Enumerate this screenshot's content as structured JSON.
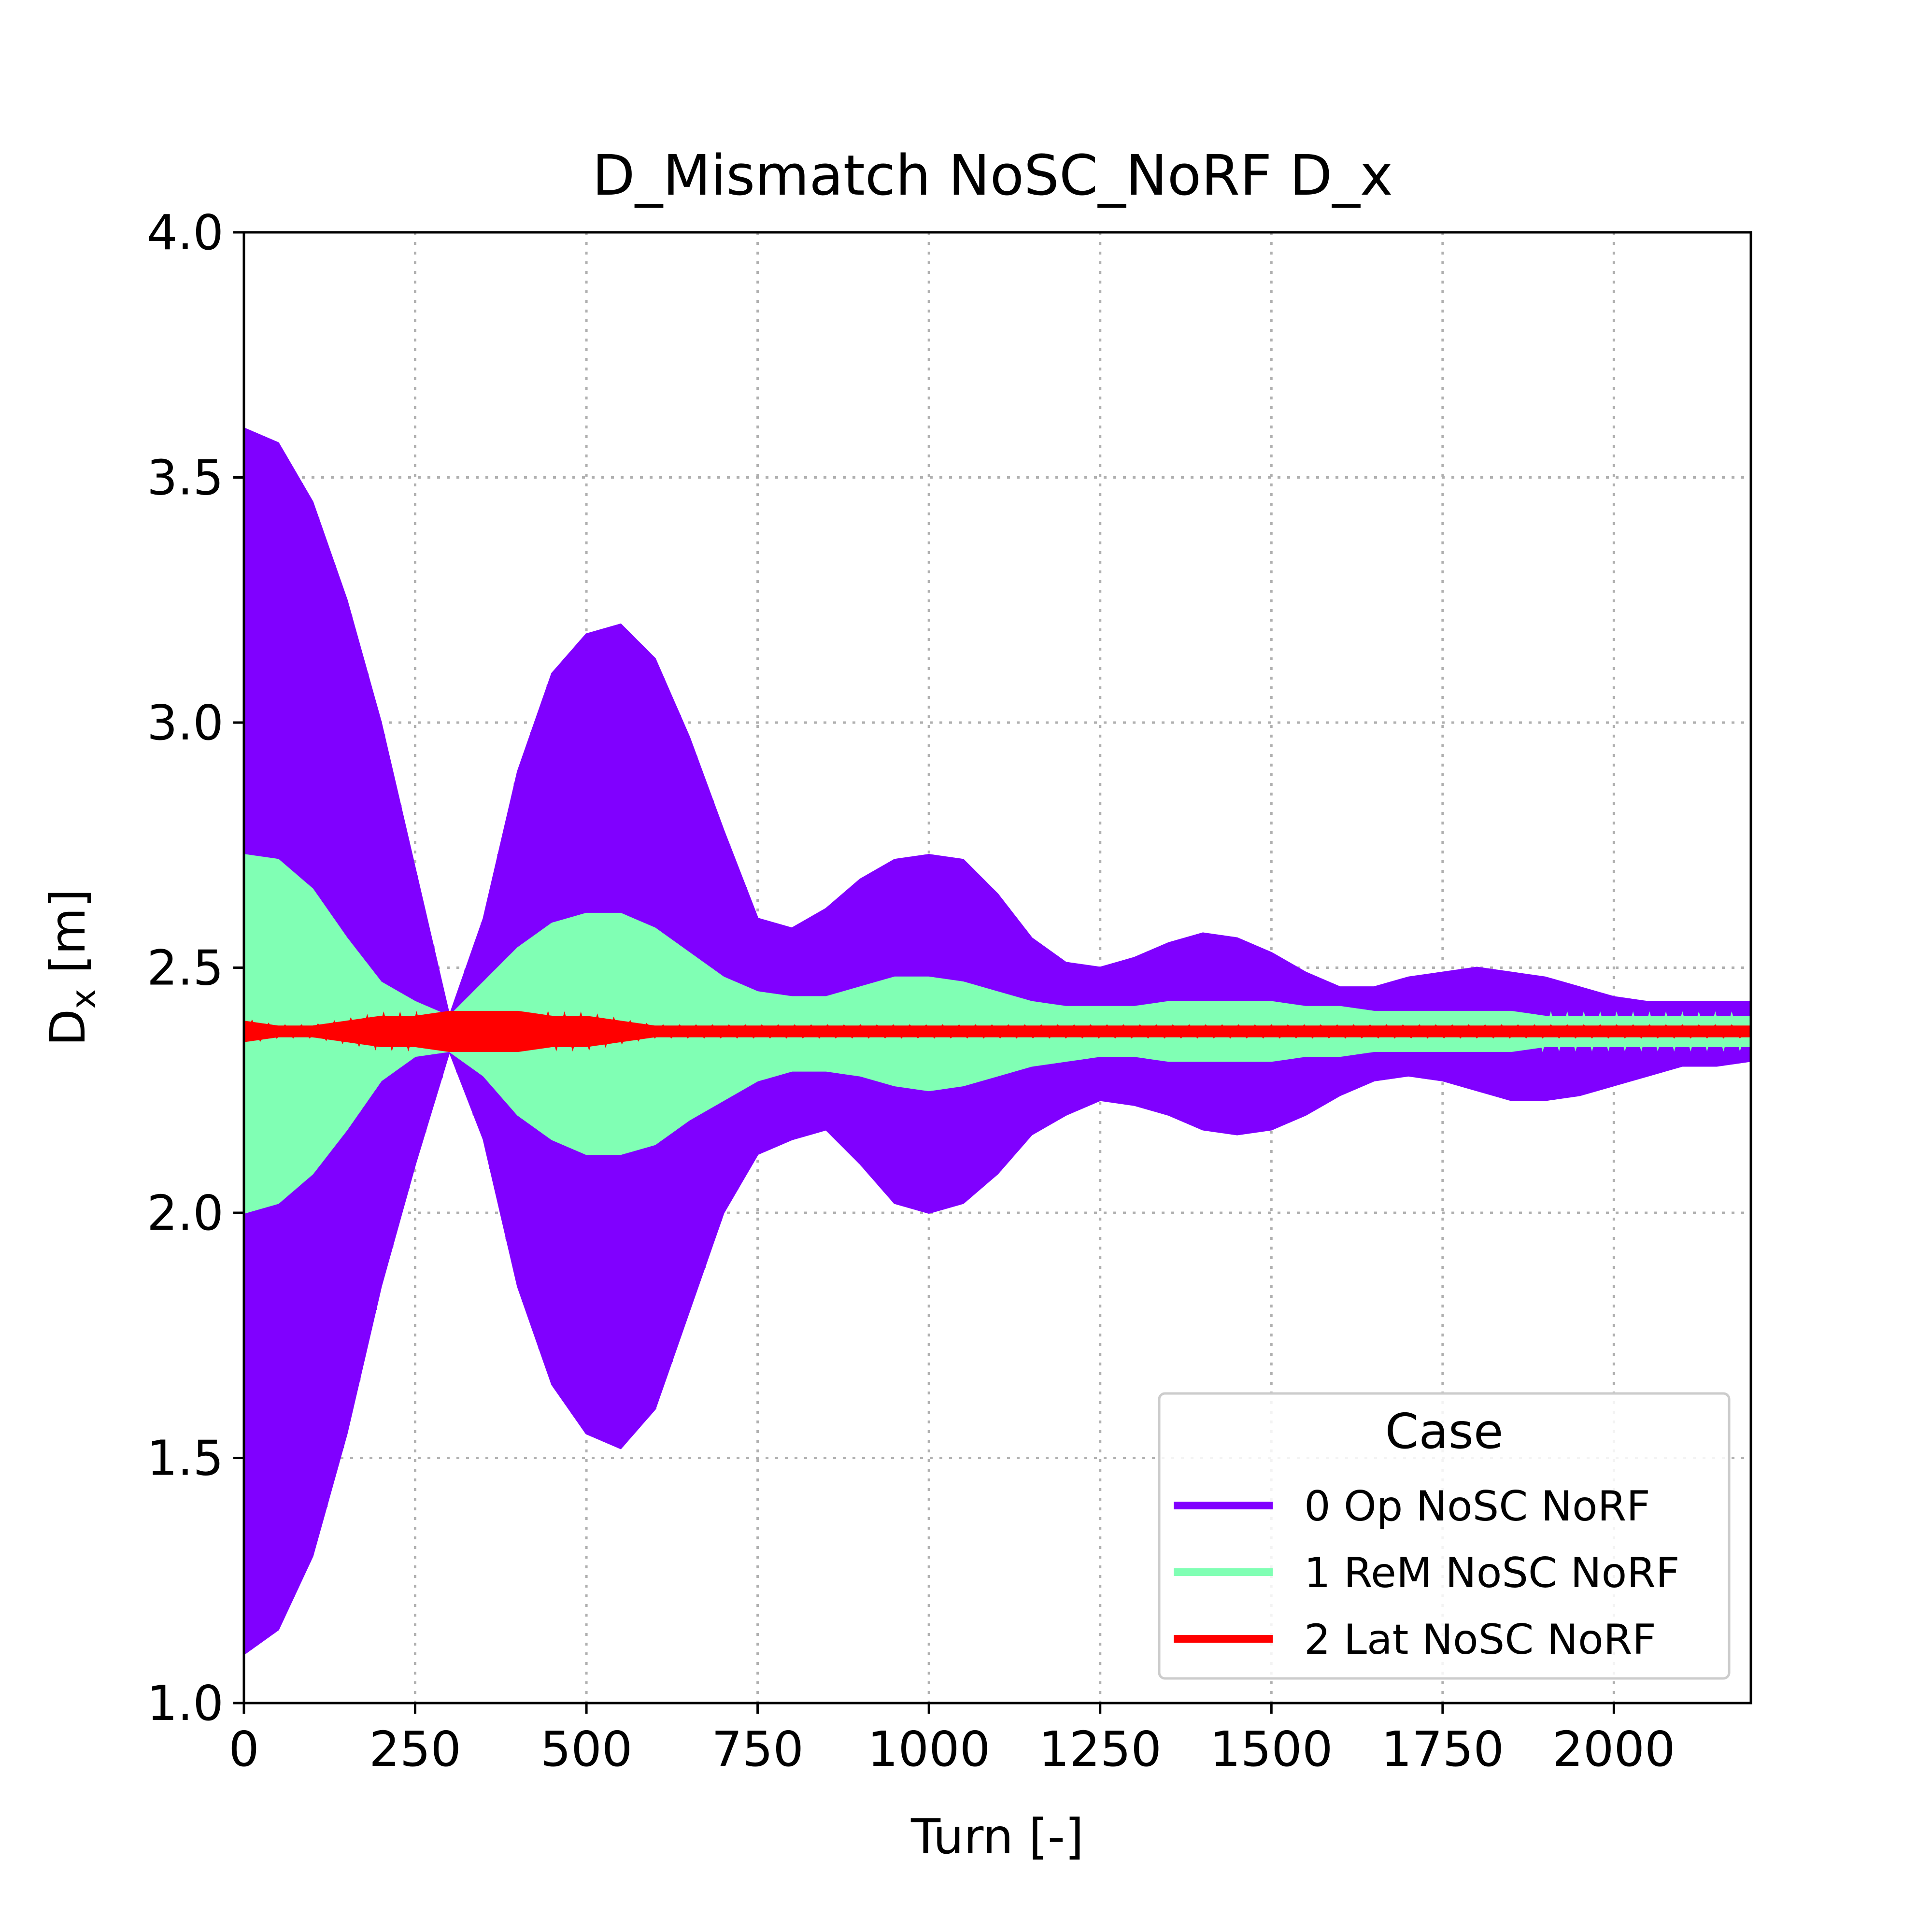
{
  "chart_data": {
    "type": "line",
    "title": "D_Mismatch NoSC_NoRF D_x",
    "xlabel": "Turn [-]",
    "ylabel_main": "D",
    "ylabel_sub": "x",
    "ylabel_unit": " [m]",
    "xlim": [
      0,
      2200
    ],
    "ylim": [
      1.0,
      4.0
    ],
    "xticks": [
      0,
      250,
      500,
      750,
      1000,
      1250,
      1500,
      1750,
      2000
    ],
    "xtick_labels": [
      "0",
      "250",
      "500",
      "750",
      "1000",
      "1250",
      "1500",
      "1750",
      "2000"
    ],
    "yticks": [
      1.0,
      1.5,
      2.0,
      2.5,
      3.0,
      3.5,
      4.0
    ],
    "ytick_labels": [
      "1.0",
      "1.5",
      "2.0",
      "2.5",
      "3.0",
      "3.5",
      "4.0"
    ],
    "grid": true,
    "legend": {
      "title": "Case",
      "placement": "lower-right"
    },
    "series": [
      {
        "name": "0 Op NoSC NoRF",
        "color": "#8000ff",
        "envelope": {
          "x": [
            0,
            50,
            100,
            150,
            200,
            250,
            300,
            350,
            400,
            450,
            500,
            550,
            600,
            650,
            700,
            750,
            800,
            850,
            900,
            950,
            1000,
            1050,
            1100,
            1150,
            1200,
            1250,
            1300,
            1350,
            1400,
            1450,
            1500,
            1550,
            1600,
            1650,
            1700,
            1750,
            1800,
            1850,
            1900,
            1950,
            2000,
            2050,
            2100,
            2150,
            2200
          ],
          "upper": [
            3.6,
            3.57,
            3.45,
            3.25,
            3.0,
            2.7,
            2.4,
            2.6,
            2.9,
            3.1,
            3.18,
            3.2,
            3.13,
            2.97,
            2.78,
            2.6,
            2.58,
            2.62,
            2.68,
            2.72,
            2.73,
            2.72,
            2.65,
            2.56,
            2.51,
            2.5,
            2.52,
            2.55,
            2.57,
            2.56,
            2.53,
            2.49,
            2.46,
            2.46,
            2.48,
            2.49,
            2.5,
            2.49,
            2.48,
            2.46,
            2.44,
            2.43,
            2.43,
            2.43,
            2.43
          ],
          "lower": [
            1.1,
            1.15,
            1.3,
            1.55,
            1.85,
            2.1,
            2.33,
            2.15,
            1.85,
            1.65,
            1.55,
            1.52,
            1.6,
            1.8,
            2.0,
            2.12,
            2.15,
            2.17,
            2.1,
            2.02,
            2.0,
            2.02,
            2.08,
            2.16,
            2.2,
            2.23,
            2.22,
            2.2,
            2.17,
            2.16,
            2.17,
            2.2,
            2.24,
            2.27,
            2.28,
            2.27,
            2.25,
            2.23,
            2.23,
            2.24,
            2.26,
            2.28,
            2.3,
            2.3,
            2.31
          ]
        }
      },
      {
        "name": "1 ReM NoSC NoRF",
        "color": "#80ffb4",
        "envelope": {
          "x": [
            0,
            50,
            100,
            150,
            200,
            250,
            300,
            350,
            400,
            450,
            500,
            550,
            600,
            650,
            700,
            750,
            800,
            850,
            900,
            950,
            1000,
            1050,
            1100,
            1150,
            1200,
            1250,
            1300,
            1350,
            1400,
            1450,
            1500,
            1550,
            1600,
            1650,
            1700,
            1750,
            1800,
            1850,
            1900,
            1950,
            2000,
            2050,
            2100,
            2150,
            2200
          ],
          "upper": [
            2.73,
            2.72,
            2.66,
            2.56,
            2.47,
            2.43,
            2.4,
            2.47,
            2.54,
            2.59,
            2.61,
            2.61,
            2.58,
            2.53,
            2.48,
            2.45,
            2.44,
            2.44,
            2.46,
            2.48,
            2.48,
            2.47,
            2.45,
            2.43,
            2.42,
            2.42,
            2.42,
            2.43,
            2.43,
            2.43,
            2.43,
            2.42,
            2.42,
            2.41,
            2.41,
            2.41,
            2.41,
            2.41,
            2.4,
            2.4,
            2.4,
            2.4,
            2.4,
            2.4,
            2.4
          ],
          "lower": [
            2.0,
            2.02,
            2.08,
            2.17,
            2.27,
            2.32,
            2.33,
            2.28,
            2.2,
            2.15,
            2.12,
            2.12,
            2.14,
            2.19,
            2.23,
            2.27,
            2.29,
            2.29,
            2.28,
            2.26,
            2.25,
            2.26,
            2.28,
            2.3,
            2.31,
            2.32,
            2.32,
            2.31,
            2.31,
            2.31,
            2.31,
            2.32,
            2.32,
            2.33,
            2.33,
            2.33,
            2.33,
            2.33,
            2.34,
            2.34,
            2.34,
            2.34,
            2.34,
            2.34,
            2.34
          ]
        }
      },
      {
        "name": "2 Lat NoSC NoRF",
        "color": "#ff0000",
        "envelope": {
          "x": [
            0,
            50,
            100,
            150,
            200,
            250,
            300,
            350,
            400,
            450,
            500,
            550,
            600,
            650,
            700,
            750,
            800,
            900,
            1000,
            1100,
            1200,
            1300,
            1400,
            1500,
            1600,
            1700,
            1800,
            1900,
            2000,
            2100,
            2200
          ],
          "upper": [
            2.39,
            2.38,
            2.38,
            2.39,
            2.4,
            2.4,
            2.41,
            2.41,
            2.41,
            2.4,
            2.4,
            2.39,
            2.38,
            2.38,
            2.38,
            2.38,
            2.38,
            2.38,
            2.38,
            2.38,
            2.38,
            2.38,
            2.38,
            2.38,
            2.38,
            2.38,
            2.38,
            2.38,
            2.38,
            2.38,
            2.38
          ],
          "lower": [
            2.35,
            2.36,
            2.36,
            2.35,
            2.34,
            2.34,
            2.33,
            2.33,
            2.33,
            2.34,
            2.34,
            2.35,
            2.36,
            2.36,
            2.36,
            2.36,
            2.36,
            2.36,
            2.36,
            2.36,
            2.36,
            2.36,
            2.36,
            2.36,
            2.36,
            2.36,
            2.36,
            2.36,
            2.36,
            2.36,
            2.36
          ]
        }
      }
    ]
  }
}
